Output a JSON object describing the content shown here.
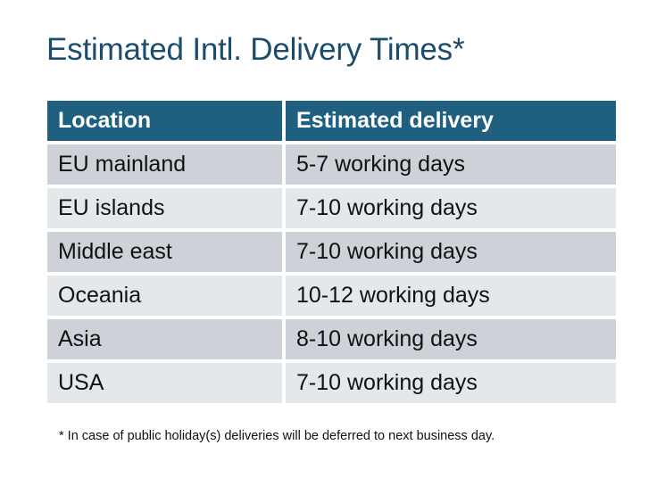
{
  "title": "Estimated Intl. Delivery Times*",
  "table": {
    "headers": [
      "Location",
      "Estimated delivery"
    ],
    "rows": [
      [
        "EU mainland",
        "5-7 working days"
      ],
      [
        "EU islands",
        "7-10 working days"
      ],
      [
        "Middle east",
        "7-10 working days"
      ],
      [
        "Oceania",
        "10-12 working days"
      ],
      [
        "Asia",
        "8-10 working days"
      ],
      [
        "USA",
        "7-10 working days"
      ]
    ]
  },
  "footnote": "* In case of public holiday(s) deliveries will be deferred to next business day.",
  "colors": {
    "title": "#1b4d6b",
    "header": "#1f6080",
    "row_odd": "#cdd1d8",
    "row_even": "#e5e8eb"
  }
}
